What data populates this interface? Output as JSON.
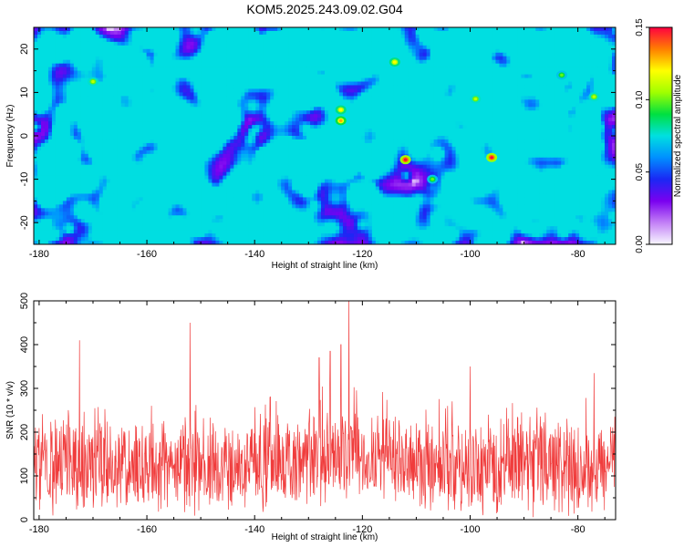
{
  "title": "KOM5.2025.243.09.02.G04",
  "chart_data": [
    {
      "type": "heatmap",
      "xlabel": "Height of straight line (km)",
      "ylabel": "Frequency (Hz)",
      "xlim": [
        -181,
        -73
      ],
      "ylim": [
        -25,
        25
      ],
      "x_ticks": [
        -180,
        -160,
        -140,
        -120,
        -100,
        -80
      ],
      "y_ticks": [
        -20,
        -10,
        0,
        10,
        20
      ],
      "colorbar": {
        "label": "Normalized spectral amplitude",
        "range": [
          0,
          0.15
        ],
        "ticks": [
          "0.00",
          "0.05",
          "0.10",
          "0.15"
        ],
        "colors": [
          "#f8f8ff",
          "#c27ff6",
          "#7a00f0",
          "#1a28f4",
          "#0090ff",
          "#00e0e0",
          "#00e040",
          "#a0ff00",
          "#ffff00",
          "#ff7f00",
          "#ff0040"
        ]
      },
      "peaks": [
        {
          "x": -112,
          "y": -5.5,
          "amp": 0.15
        },
        {
          "x": -96,
          "y": -5,
          "amp": 0.15
        },
        {
          "x": -124,
          "y": 3.5,
          "amp": 0.13
        },
        {
          "x": -124,
          "y": 6,
          "amp": 0.12
        },
        {
          "x": -114,
          "y": 17,
          "amp": 0.12
        },
        {
          "x": -170,
          "y": 12.5,
          "amp": 0.11
        },
        {
          "x": -99,
          "y": 8.5,
          "amp": 0.11
        },
        {
          "x": -77,
          "y": 9,
          "amp": 0.11
        },
        {
          "x": -83,
          "y": 14,
          "amp": 0.1
        },
        {
          "x": -107,
          "y": -10,
          "amp": 0.1
        }
      ]
    },
    {
      "type": "line",
      "xlabel": "Height of straight line (km)",
      "ylabel": "SNR (10 * v/v)",
      "xlim": [
        -181,
        -73
      ],
      "ylim": [
        0,
        500
      ],
      "x_ticks": [
        -180,
        -160,
        -140,
        -120,
        -100,
        -80
      ],
      "y_ticks": [
        0,
        100,
        200,
        300,
        400,
        500
      ],
      "series": [
        {
          "name": "SNR",
          "color": "#f03c3c",
          "baseline": 120
        }
      ],
      "peaks": [
        {
          "x": -122.5,
          "y": 505
        },
        {
          "x": -152,
          "y": 450
        },
        {
          "x": -172.5,
          "y": 410
        },
        {
          "x": -124,
          "y": 400
        },
        {
          "x": -126,
          "y": 385
        },
        {
          "x": -128,
          "y": 370
        },
        {
          "x": -100,
          "y": 350
        },
        {
          "x": -77,
          "y": 335
        }
      ]
    }
  ]
}
